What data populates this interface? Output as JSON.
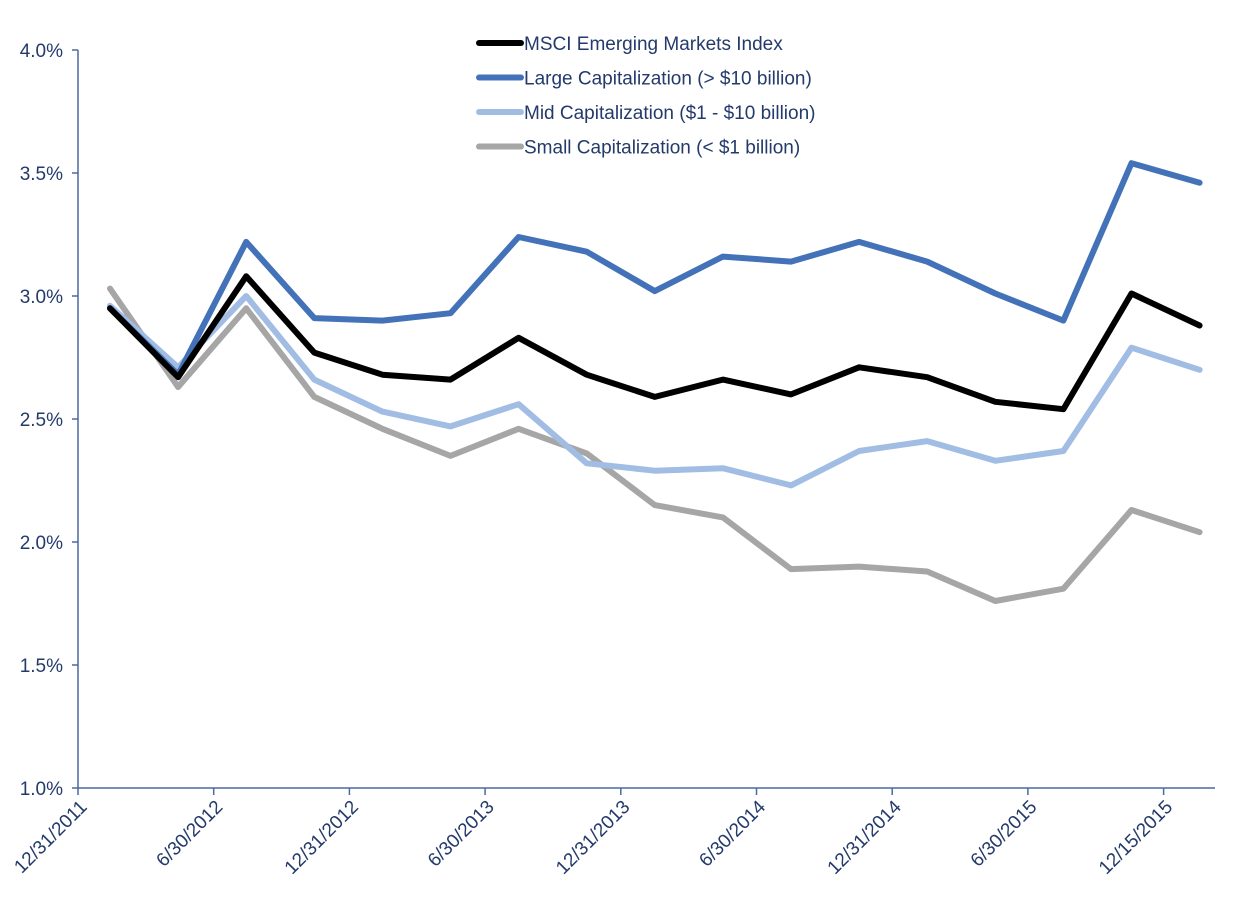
{
  "chart_data": {
    "type": "line",
    "title": "",
    "xlabel": "",
    "ylabel": "",
    "ylim": [
      1.0,
      4.0
    ],
    "y_ticks": [
      "1.0%",
      "1.5%",
      "2.0%",
      "2.5%",
      "3.0%",
      "3.5%",
      "4.0%"
    ],
    "x_tick_labels": [
      "12/31/2011",
      "6/30/2012",
      "12/31/2012",
      "6/30/2013",
      "12/31/2013",
      "6/30/2014",
      "12/31/2014",
      "6/30/2015",
      "12/15/2015"
    ],
    "grid": false,
    "legend_position": "top-center",
    "series": [
      {
        "name": "MSCI Emerging Markets Index",
        "color": "#000000",
        "values": [
          2.95,
          2.67,
          3.08,
          2.77,
          2.68,
          2.66,
          2.83,
          2.68,
          2.59,
          2.66,
          2.6,
          2.71,
          2.67,
          2.57,
          2.54,
          3.01,
          2.88
        ]
      },
      {
        "name": "Large Capitalization (> $10 billion)",
        "color": "#4472b8",
        "values": [
          2.95,
          2.68,
          3.22,
          2.91,
          2.9,
          2.93,
          3.24,
          3.18,
          3.02,
          3.16,
          3.14,
          3.22,
          3.14,
          3.01,
          2.9,
          3.54,
          3.46
        ]
      },
      {
        "name": "Mid Capitalization ($1 - $10 billion)",
        "color": "#a2bde4",
        "values": [
          2.96,
          2.71,
          3.0,
          2.66,
          2.53,
          2.47,
          2.56,
          2.32,
          2.29,
          2.3,
          2.23,
          2.37,
          2.41,
          2.33,
          2.37,
          2.79,
          2.7
        ]
      },
      {
        "name": "Small Capitalization (< $1 billion)",
        "color": "#a6a6a6",
        "values": [
          3.03,
          2.63,
          2.95,
          2.59,
          2.46,
          2.35,
          2.46,
          2.36,
          2.15,
          2.1,
          1.89,
          1.9,
          1.88,
          1.76,
          1.81,
          2.13,
          2.04
        ]
      }
    ]
  }
}
